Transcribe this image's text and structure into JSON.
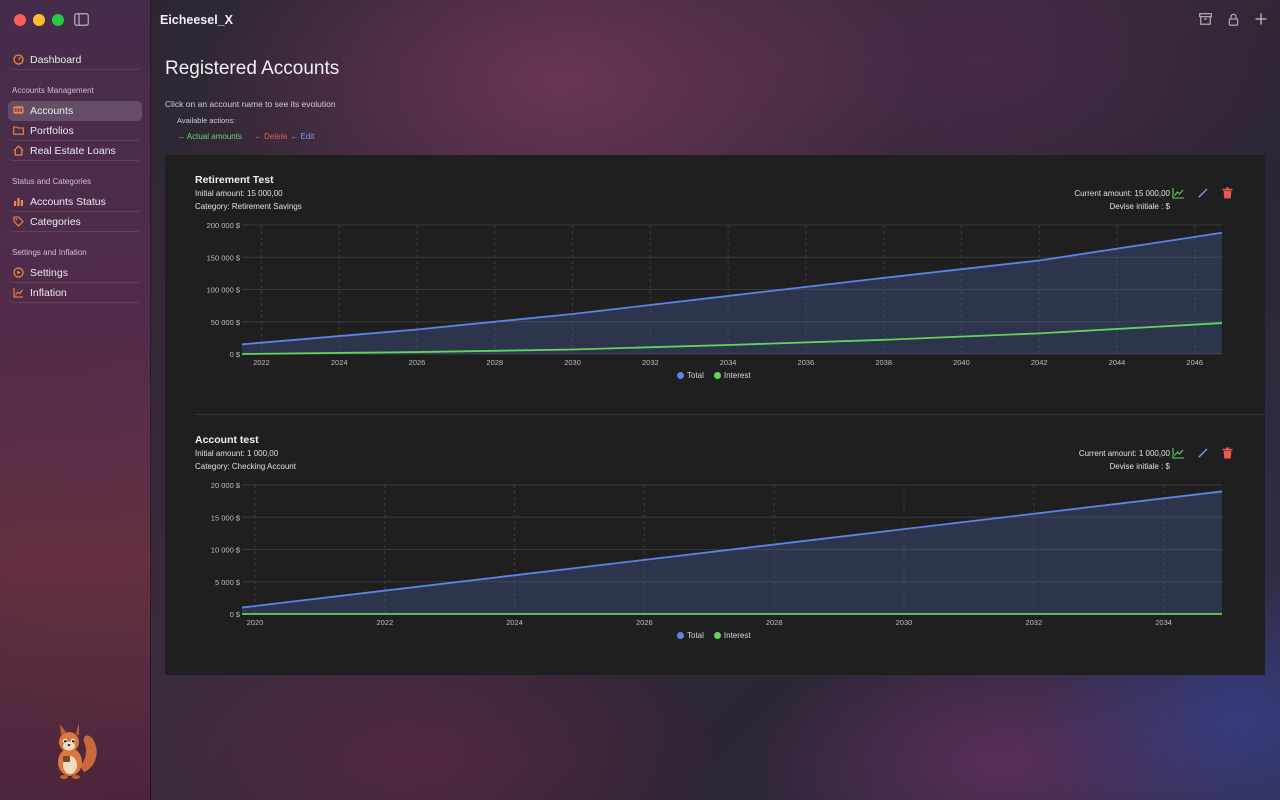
{
  "window": {
    "title": "Eicheesel_X"
  },
  "sidebar": {
    "top_item": {
      "label": "Dashboard",
      "icon": "dashboard-icon"
    },
    "sections": [
      {
        "label": "Accounts Management",
        "items": [
          {
            "label": "Accounts",
            "icon": "accounts-icon",
            "active": true
          },
          {
            "label": "Portfolios",
            "icon": "folder-icon"
          },
          {
            "label": "Real Estate Loans",
            "icon": "house-icon"
          }
        ]
      },
      {
        "label": "Status and Categories",
        "items": [
          {
            "label": "Accounts Status",
            "icon": "bar-chart-icon"
          },
          {
            "label": "Categories",
            "icon": "tag-icon"
          }
        ]
      },
      {
        "label": "Settings and Inflation",
        "items": [
          {
            "label": "Settings",
            "icon": "settings-icon"
          },
          {
            "label": "Inflation",
            "icon": "trend-icon"
          }
        ]
      }
    ]
  },
  "page": {
    "title": "Registered Accounts",
    "hint": "Click on an account name to see its evolution",
    "actions_label": "Available actions:",
    "actions": {
      "actual": "→ Actual amounts",
      "delete": "← Delete",
      "edit": "← Edit"
    }
  },
  "colors": {
    "total": "#5b84e6",
    "interest": "#62d45a",
    "delete": "#ea5a52",
    "edit": "#6f9cf0",
    "actual": "#6bd36b"
  },
  "legend": {
    "total": "Total",
    "interest": "Interest"
  },
  "accounts": [
    {
      "name": "Retirement Test",
      "initial": "Initial amount: 15 000,00",
      "category": "Category: Retirement Savings",
      "current": "Current amount: 15 000,00",
      "currency": "Devise initiale : $"
    },
    {
      "name": "Account test",
      "initial": "Initial amount: 1 000,00",
      "category": "Category: Checking Account",
      "current": "Current amount: 1 000,00",
      "currency": "Devise initiale : $"
    }
  ],
  "chart_data": [
    {
      "type": "area",
      "ylim": [
        0,
        200000
      ],
      "y_ticks": [
        "200 000 $",
        "150 000 $",
        "100 000 $",
        "50 000 $",
        "0 $"
      ],
      "x_ticks": [
        "2022",
        "2024",
        "2026",
        "2028",
        "2030",
        "2032",
        "2034",
        "2036",
        "2038",
        "2040",
        "2042",
        "2044",
        "2046"
      ],
      "xlim": [
        2021.5,
        2046.7
      ],
      "series": [
        {
          "name": "Total",
          "x": [
            2021.5,
            2026,
            2030,
            2034,
            2038,
            2042,
            2046.7
          ],
          "values": [
            15000,
            38000,
            62000,
            90000,
            118000,
            145000,
            188000
          ]
        },
        {
          "name": "Interest",
          "x": [
            2021.5,
            2026,
            2030,
            2034,
            2038,
            2042,
            2046.7
          ],
          "values": [
            0,
            3000,
            7000,
            14000,
            22000,
            32000,
            48000
          ]
        }
      ]
    },
    {
      "type": "area",
      "ylim": [
        0,
        20000
      ],
      "y_ticks": [
        "20 000 $",
        "15 000 $",
        "10 000 $",
        "5 000 $",
        "0 $"
      ],
      "x_ticks": [
        "2020",
        "2022",
        "2024",
        "2026",
        "2028",
        "2030",
        "2032",
        "2034"
      ],
      "xlim": [
        2019.8,
        2034.9
      ],
      "series": [
        {
          "name": "Total",
          "x": [
            2019.8,
            2034.9
          ],
          "values": [
            1000,
            19000
          ]
        },
        {
          "name": "Interest",
          "x": [
            2019.8,
            2034.9
          ],
          "values": [
            0,
            0
          ]
        }
      ]
    }
  ]
}
